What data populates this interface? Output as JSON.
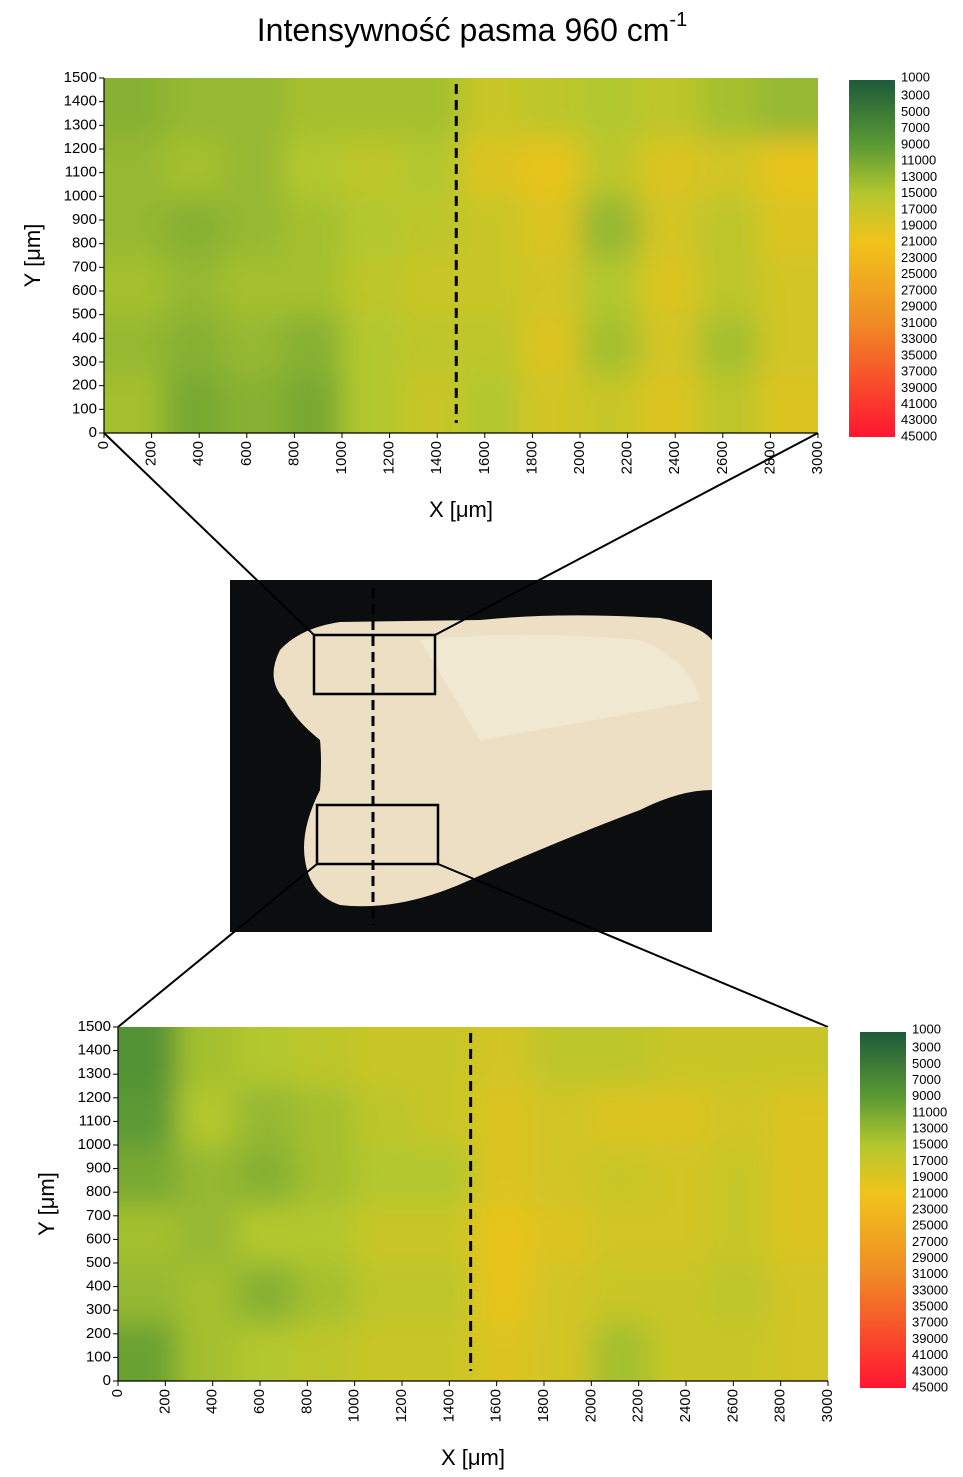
{
  "title": {
    "text": "Intensywność pasma 960 cm",
    "superscript": "-1"
  },
  "chart_data": [
    {
      "type": "heatmap",
      "xlabel": "X [μm]",
      "ylabel": "Y [μm]",
      "xlim": [
        0,
        3000
      ],
      "ylim": [
        0,
        1500
      ],
      "xticks": [
        0,
        200,
        400,
        600,
        800,
        1000,
        1200,
        1400,
        1600,
        1800,
        2000,
        2200,
        2400,
        2600,
        2800,
        3000
      ],
      "yticks": [
        0,
        100,
        200,
        300,
        400,
        500,
        600,
        700,
        800,
        900,
        1000,
        1100,
        1200,
        1300,
        1400,
        1500
      ],
      "x": [
        125,
        375,
        625,
        875,
        1125,
        1375,
        1625,
        1875,
        2125,
        2375,
        2625,
        2875
      ],
      "y": [
        125,
        375,
        625,
        875,
        1125,
        1375
      ],
      "values": [
        [
          14000,
          11000,
          12000,
          11000,
          15000,
          17000,
          15000,
          18000,
          17000,
          19000,
          16000,
          19000
        ],
        [
          13000,
          12000,
          13000,
          12000,
          15000,
          16000,
          16000,
          19000,
          14000,
          18000,
          14000,
          18000
        ],
        [
          14000,
          13000,
          14000,
          14000,
          16000,
          17000,
          17000,
          18000,
          15000,
          19000,
          16000,
          18000
        ],
        [
          13000,
          12000,
          13000,
          14000,
          15000,
          16000,
          17000,
          19000,
          13000,
          18000,
          16000,
          19000
        ],
        [
          13000,
          14000,
          13000,
          15000,
          16000,
          15000,
          19000,
          20000,
          16000,
          19000,
          18000,
          20000
        ],
        [
          12000,
          13000,
          13000,
          14000,
          14000,
          14000,
          17000,
          16000,
          15000,
          16000,
          14000,
          13000
        ]
      ],
      "marker_x": 1480,
      "colormap": [
        {
          "value": 1000,
          "color": "#1d5a3a"
        },
        {
          "value": 9000,
          "color": "#5b9a34"
        },
        {
          "value": 15000,
          "color": "#b3c72e"
        },
        {
          "value": 21000,
          "color": "#f1c31b"
        },
        {
          "value": 31000,
          "color": "#f08a26"
        },
        {
          "value": 45000,
          "color": "#ff1530"
        }
      ],
      "colorbar_ticks": [
        1000,
        3000,
        5000,
        7000,
        9000,
        11000,
        13000,
        15000,
        17000,
        19000,
        21000,
        23000,
        25000,
        27000,
        29000,
        31000,
        33000,
        35000,
        37000,
        39000,
        41000,
        43000,
        45000
      ]
    },
    {
      "type": "heatmap",
      "xlabel": "X [μm]",
      "ylabel": "Y [μm]",
      "xlim": [
        0,
        3000
      ],
      "ylim": [
        0,
        1500
      ],
      "xticks": [
        0,
        200,
        400,
        600,
        800,
        1000,
        1200,
        1400,
        1600,
        1800,
        2000,
        2200,
        2400,
        2600,
        2800,
        3000
      ],
      "yticks": [
        0,
        100,
        200,
        300,
        400,
        500,
        600,
        700,
        800,
        900,
        1000,
        1100,
        1200,
        1300,
        1400,
        1500
      ],
      "x": [
        125,
        375,
        625,
        875,
        1125,
        1375,
        1625,
        1875,
        2125,
        2375,
        2625,
        2875
      ],
      "y": [
        125,
        375,
        625,
        875,
        1125,
        1375
      ],
      "values": [
        [
          10000,
          14000,
          15000,
          16000,
          17000,
          17000,
          19000,
          18000,
          14000,
          17000,
          17000,
          18000
        ],
        [
          13000,
          14000,
          12000,
          14000,
          16000,
          16000,
          20000,
          18000,
          17000,
          17000,
          16000,
          18000
        ],
        [
          14000,
          13000,
          15000,
          15000,
          17000,
          17000,
          20000,
          19000,
          18000,
          18000,
          17000,
          19000
        ],
        [
          11000,
          13000,
          12000,
          14000,
          15000,
          15000,
          19000,
          18000,
          17000,
          18000,
          17000,
          19000
        ],
        [
          9000,
          15000,
          13000,
          14000,
          16000,
          17000,
          19000,
          18000,
          19000,
          19000,
          18000,
          19000
        ],
        [
          8000,
          14000,
          15000,
          16000,
          17000,
          17000,
          18000,
          16000,
          16000,
          17000,
          17000,
          17000
        ]
      ],
      "marker_x": 1490,
      "colormap": [
        {
          "value": 1000,
          "color": "#1d5a3a"
        },
        {
          "value": 9000,
          "color": "#5b9a34"
        },
        {
          "value": 15000,
          "color": "#b3c72e"
        },
        {
          "value": 21000,
          "color": "#f1c31b"
        },
        {
          "value": 31000,
          "color": "#f08a26"
        },
        {
          "value": 45000,
          "color": "#ff1530"
        }
      ],
      "colorbar_ticks": [
        1000,
        3000,
        5000,
        7000,
        9000,
        11000,
        13000,
        15000,
        17000,
        19000,
        21000,
        23000,
        25000,
        27000,
        29000,
        31000,
        33000,
        35000,
        37000,
        39000,
        41000,
        43000,
        45000
      ]
    }
  ]
}
